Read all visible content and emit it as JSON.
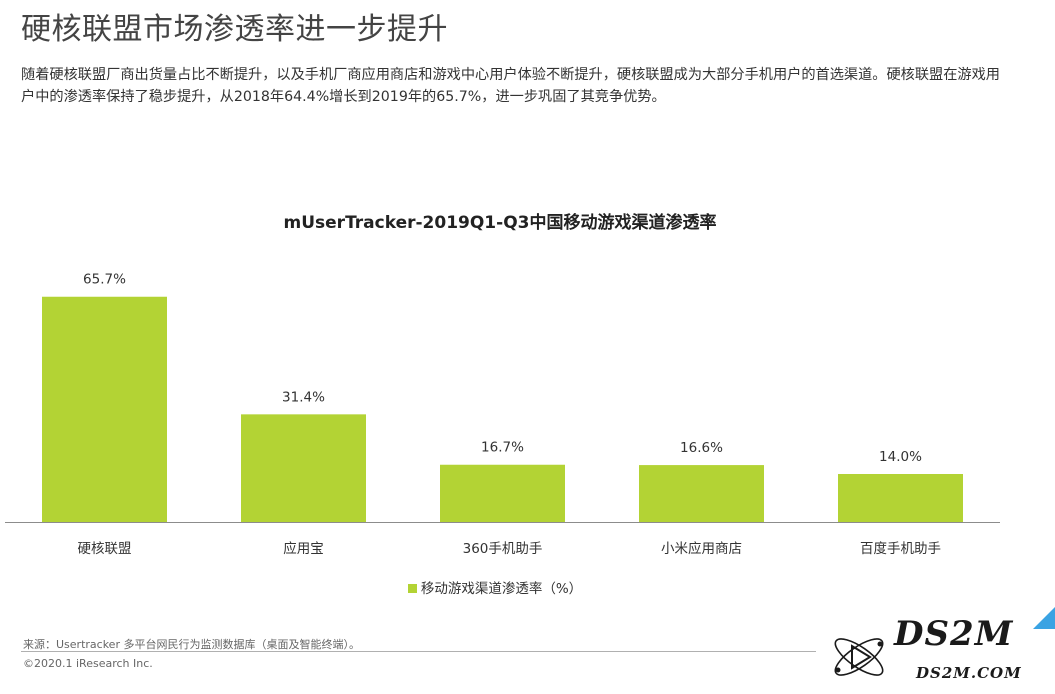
{
  "header": {
    "title": "硬核联盟市场渗透率进一步提升",
    "description": "随着硬核联盟厂商出货量占比不断提升，以及手机厂商应用商店和游戏中心用户体验不断提升，硬核联盟成为大部分手机用户的首选渠道。硬核联盟在游戏用户中的渗透率保持了稳步提升，从2018年64.4%增长到2019年的65.7%，进一步巩固了其竞争优势。"
  },
  "chart_data": {
    "type": "bar",
    "title": "mUserTracker-2019Q1-Q3中国移动游戏渠道渗透率",
    "categories": [
      "硬核联盟",
      "应用宝",
      "360手机助手",
      "小米应用商店",
      "百度手机助手"
    ],
    "series": [
      {
        "name": "移动游戏渠道渗透率（%）",
        "values": [
          65.7,
          31.4,
          16.7,
          16.6,
          14.0
        ],
        "labels": [
          "65.7%",
          "31.4%",
          "16.7%",
          "16.6%",
          "14.0%"
        ]
      }
    ],
    "ylim": [
      0,
      70
    ],
    "grid": false,
    "legend_position": "bottom",
    "bar_color": "#b3d334"
  },
  "footer": {
    "source": "来源：Usertracker 多平台网民行为监测数据库（桌面及智能终端）。",
    "copyright": "©2020.1 iResearch Inc."
  },
  "watermark": {
    "big": "DS2M",
    "small": "DS2M.COM"
  },
  "colors": {
    "bar": "#b3d334",
    "corner_accent": "#3aa3e3"
  }
}
